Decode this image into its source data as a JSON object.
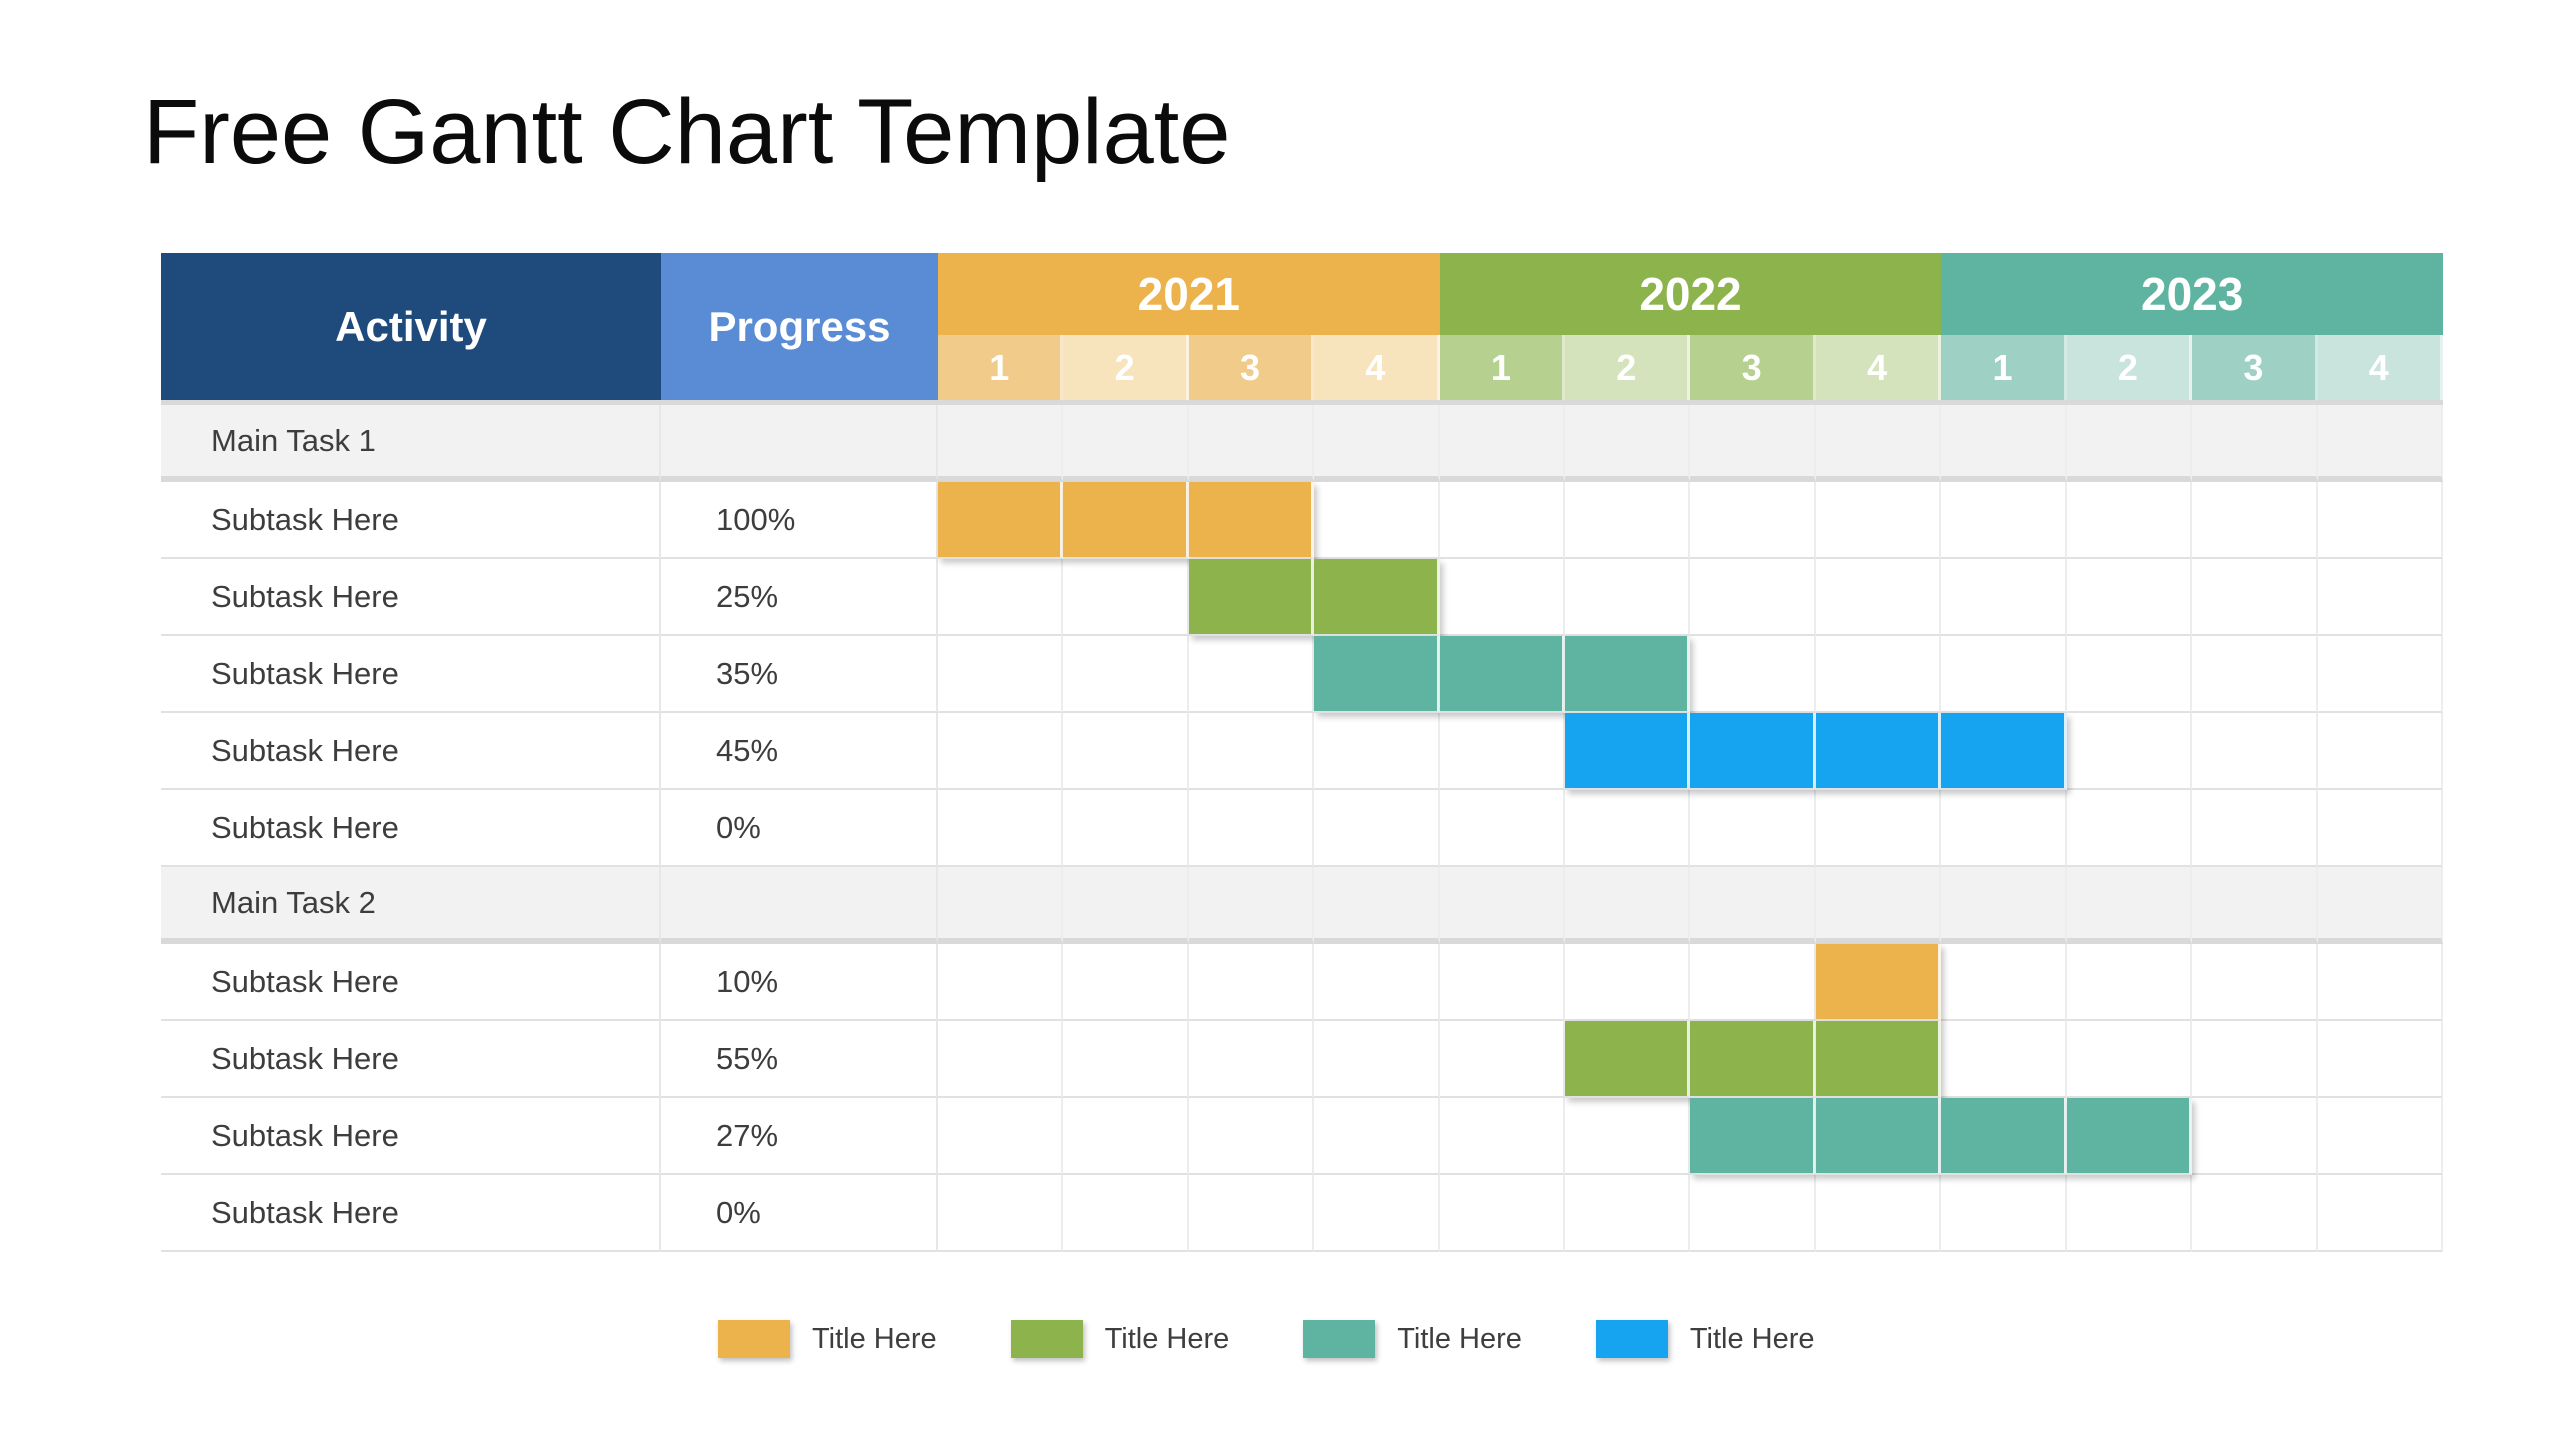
{
  "title": "Free Gantt Chart Template",
  "colors": {
    "navy": "#1F4A7C",
    "progress_blue": "#598CD4",
    "orange": "#ECB24B",
    "orange_mid": "#F1CB89",
    "orange_light": "#F7E3BC",
    "green": "#8DB44C",
    "green_mid": "#B5D08F",
    "green_light": "#D4E3BB",
    "teal": "#5FB4A1",
    "teal_mid": "#9ED0C4",
    "teal_light": "#C9E3DD",
    "blue": "#16A4F0",
    "main_row_bg": "#F2F2F2"
  },
  "table": {
    "activity_header": "Activity",
    "progress_header": "Progress",
    "years": [
      {
        "label": "2021",
        "color_key": "orange",
        "quarters": [
          "1",
          "2",
          "3",
          "4"
        ]
      },
      {
        "label": "2022",
        "color_key": "green",
        "quarters": [
          "1",
          "2",
          "3",
          "4"
        ]
      },
      {
        "label": "2023",
        "color_key": "teal",
        "quarters": [
          "1",
          "2",
          "3",
          "4"
        ]
      }
    ],
    "rows": [
      {
        "type": "main",
        "activity": "Main Task 1",
        "progress": "",
        "cells": [
          "",
          "",
          "",
          "",
          "",
          "",
          "",
          "",
          "",
          "",
          "",
          ""
        ]
      },
      {
        "type": "sub",
        "activity": "Subtask Here",
        "progress": "100%",
        "cells": [
          "orange",
          "orange",
          "orange",
          "",
          "",
          "",
          "",
          "",
          "",
          "",
          "",
          ""
        ]
      },
      {
        "type": "sub",
        "activity": "Subtask Here",
        "progress": "25%",
        "cells": [
          "",
          "",
          "green",
          "green",
          "",
          "",
          "",
          "",
          "",
          "",
          "",
          ""
        ]
      },
      {
        "type": "sub",
        "activity": "Subtask Here",
        "progress": "35%",
        "cells": [
          "",
          "",
          "",
          "teal",
          "teal",
          "teal",
          "",
          "",
          "",
          "",
          "",
          ""
        ]
      },
      {
        "type": "sub",
        "activity": "Subtask Here",
        "progress": "45%",
        "cells": [
          "",
          "",
          "",
          "",
          "",
          "blue",
          "blue",
          "blue",
          "blue",
          "",
          "",
          ""
        ]
      },
      {
        "type": "sub",
        "activity": "Subtask Here",
        "progress": "0%",
        "cells": [
          "",
          "",
          "",
          "",
          "",
          "",
          "",
          "",
          "",
          "",
          "",
          ""
        ]
      },
      {
        "type": "main",
        "activity": "Main Task 2",
        "progress": "",
        "cells": [
          "",
          "",
          "",
          "",
          "",
          "",
          "",
          "",
          "",
          "",
          "",
          ""
        ]
      },
      {
        "type": "sub",
        "activity": "Subtask Here",
        "progress": "10%",
        "cells": [
          "",
          "",
          "",
          "",
          "",
          "",
          "",
          "orange",
          "",
          "",
          "",
          ""
        ]
      },
      {
        "type": "sub",
        "activity": "Subtask Here",
        "progress": "55%",
        "cells": [
          "",
          "",
          "",
          "",
          "",
          "green",
          "green",
          "green",
          "",
          "",
          "",
          ""
        ]
      },
      {
        "type": "sub",
        "activity": "Subtask Here",
        "progress": "27%",
        "cells": [
          "",
          "",
          "",
          "",
          "",
          "",
          "teal",
          "teal",
          "teal",
          "teal",
          "",
          ""
        ]
      },
      {
        "type": "sub",
        "activity": "Subtask Here",
        "progress": "0%",
        "cells": [
          "",
          "",
          "",
          "",
          "",
          "",
          "",
          "",
          "",
          "",
          "",
          ""
        ]
      }
    ]
  },
  "legend": [
    {
      "swatch_color": "#ECB24B",
      "label": "Title Here"
    },
    {
      "swatch_color": "#8DB44C",
      "label": "Title Here"
    },
    {
      "swatch_color": "#5FB4A1",
      "label": "Title Here"
    },
    {
      "swatch_color": "#16A4F0",
      "label": "Title Here"
    }
  ],
  "chart_data": {
    "type": "table",
    "subtype": "gantt",
    "title": "Free Gantt Chart Template",
    "columns": [
      "Activity",
      "Progress",
      "2021 Q1",
      "2021 Q2",
      "2021 Q3",
      "2021 Q4",
      "2022 Q1",
      "2022 Q2",
      "2022 Q3",
      "2022 Q4",
      "2023 Q1",
      "2023 Q2",
      "2023 Q3",
      "2023 Q4"
    ],
    "timeline_years": [
      "2021",
      "2022",
      "2023"
    ],
    "quarters_per_year": [
      "1",
      "2",
      "3",
      "4"
    ],
    "tasks": [
      {
        "activity": "Main Task 1",
        "group": true,
        "progress_pct": null,
        "bar": null
      },
      {
        "activity": "Subtask Here",
        "group": false,
        "progress_pct": 100,
        "bar": {
          "start": "2021 Q1",
          "end": "2021 Q3",
          "color": "#ECB24B"
        }
      },
      {
        "activity": "Subtask Here",
        "group": false,
        "progress_pct": 25,
        "bar": {
          "start": "2021 Q3",
          "end": "2021 Q4",
          "color": "#8DB44C"
        }
      },
      {
        "activity": "Subtask Here",
        "group": false,
        "progress_pct": 35,
        "bar": {
          "start": "2021 Q4",
          "end": "2022 Q2",
          "color": "#5FB4A1"
        }
      },
      {
        "activity": "Subtask Here",
        "group": false,
        "progress_pct": 45,
        "bar": {
          "start": "2022 Q2",
          "end": "2023 Q1",
          "color": "#16A4F0"
        }
      },
      {
        "activity": "Subtask Here",
        "group": false,
        "progress_pct": 0,
        "bar": null
      },
      {
        "activity": "Main Task 2",
        "group": true,
        "progress_pct": null,
        "bar": null
      },
      {
        "activity": "Subtask Here",
        "group": false,
        "progress_pct": 10,
        "bar": {
          "start": "2022 Q4",
          "end": "2022 Q4",
          "color": "#ECB24B"
        }
      },
      {
        "activity": "Subtask Here",
        "group": false,
        "progress_pct": 55,
        "bar": {
          "start": "2022 Q2",
          "end": "2022 Q4",
          "color": "#8DB44C"
        }
      },
      {
        "activity": "Subtask Here",
        "group": false,
        "progress_pct": 27,
        "bar": {
          "start": "2022 Q3",
          "end": "2023 Q2",
          "color": "#5FB4A1"
        }
      },
      {
        "activity": "Subtask Here",
        "group": false,
        "progress_pct": 0,
        "bar": null
      }
    ],
    "legend_entries": [
      "Title Here",
      "Title Here",
      "Title Here",
      "Title Here"
    ],
    "legend_position": "bottom",
    "grid": true
  }
}
